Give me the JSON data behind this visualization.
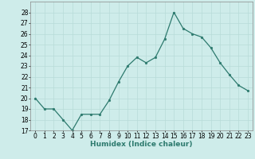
{
  "x": [
    0,
    1,
    2,
    3,
    4,
    5,
    6,
    7,
    8,
    9,
    10,
    11,
    12,
    13,
    14,
    15,
    16,
    17,
    18,
    19,
    20,
    21,
    22,
    23
  ],
  "y": [
    20,
    19,
    19,
    18,
    17,
    18.5,
    18.5,
    18.5,
    19.8,
    21.5,
    23,
    23.8,
    23.3,
    23.8,
    25.5,
    28,
    26.5,
    26,
    25.7,
    24.7,
    23.3,
    22.2,
    21.2,
    20.7
  ],
  "line_color": "#2d7a6e",
  "marker": "o",
  "marker_size": 2.0,
  "linewidth": 0.9,
  "xlabel": "Humidex (Indice chaleur)",
  "xlim": [
    -0.5,
    23.5
  ],
  "ylim": [
    17,
    29
  ],
  "yticks": [
    17,
    18,
    19,
    20,
    21,
    22,
    23,
    24,
    25,
    26,
    27,
    28
  ],
  "xticks": [
    0,
    1,
    2,
    3,
    4,
    5,
    6,
    7,
    8,
    9,
    10,
    11,
    12,
    13,
    14,
    15,
    16,
    17,
    18,
    19,
    20,
    21,
    22,
    23
  ],
  "bg_color": "#ceecea",
  "grid_color": "#b8dbd8",
  "tick_fontsize": 5.5,
  "xlabel_fontsize": 6.5,
  "marker_color": "#2d7a6e"
}
